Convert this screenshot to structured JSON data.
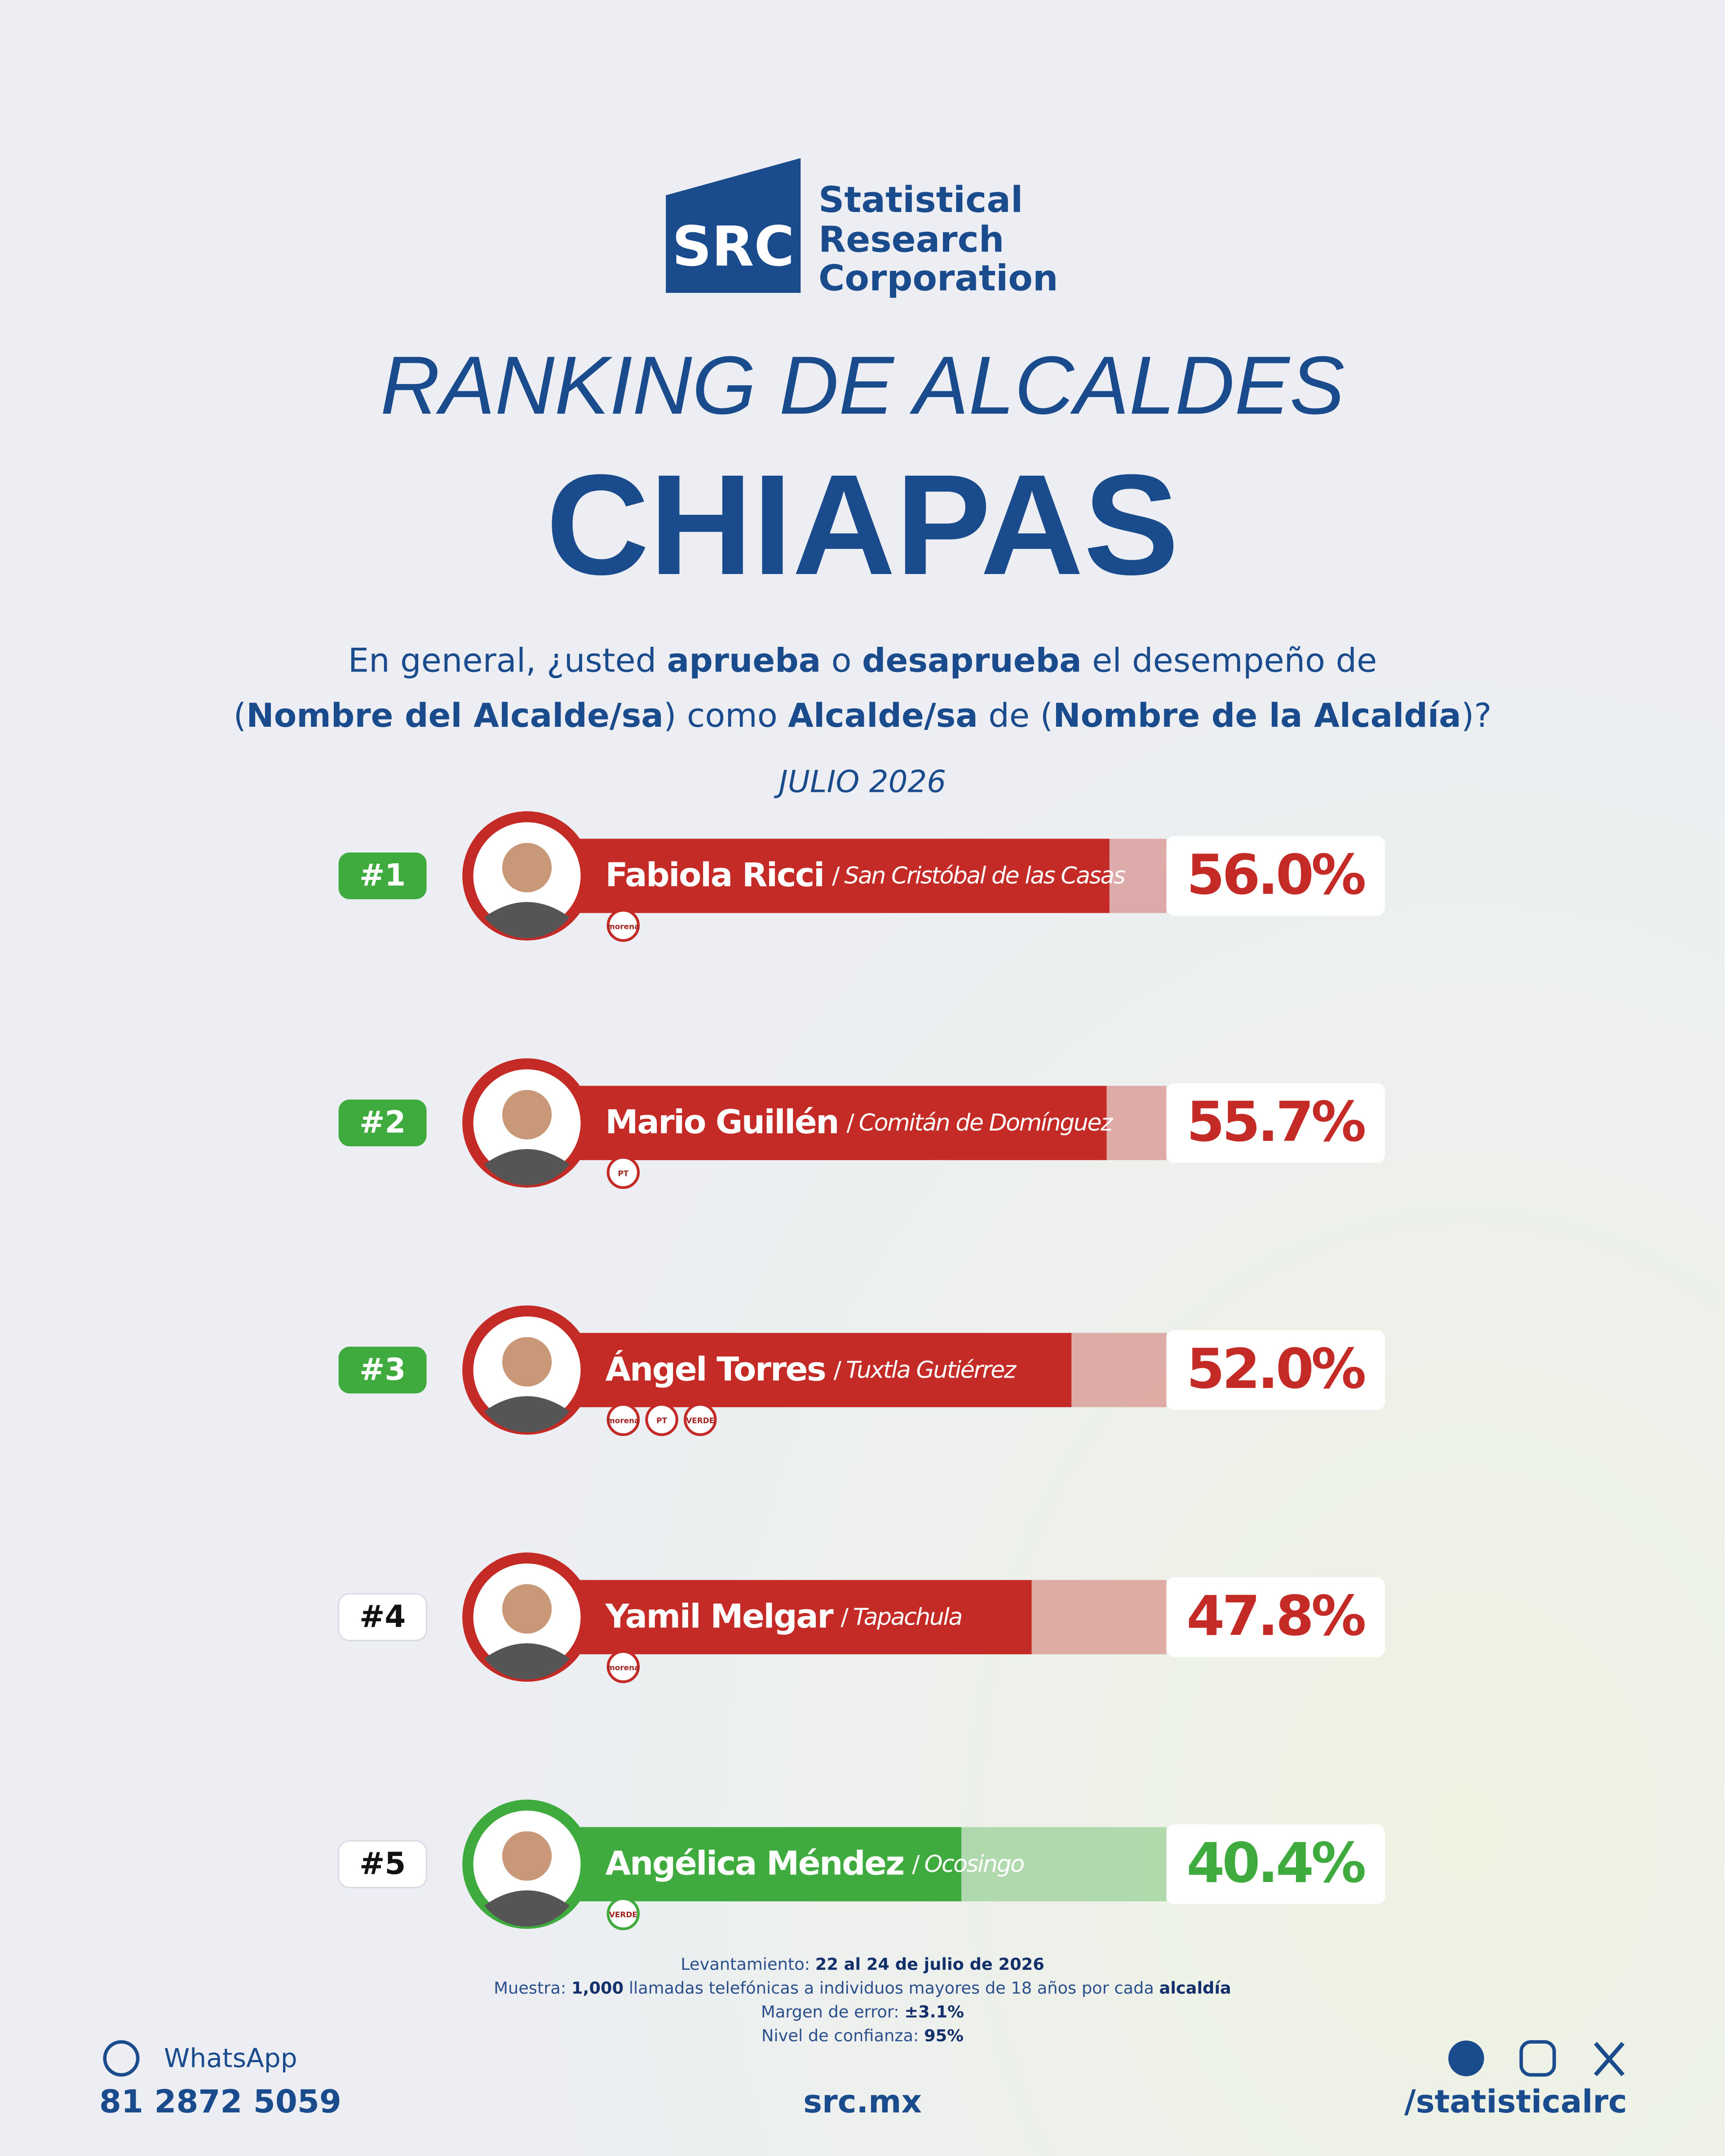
{
  "logo": {
    "mark": "SRC",
    "lines": [
      "Statistical",
      "Research",
      "Corporation"
    ]
  },
  "title": "RANKING DE ALCALDES",
  "state": "CHIAPAS",
  "question": [
    [
      "En general, ¿usted ",
      "aprueba",
      " o ",
      "desaprueba",
      " el desempeño de"
    ],
    [
      "(",
      "Nombre del Alcalde/sa",
      ") como ",
      "Alcalde/sa",
      " de (",
      "Nombre de la Alcaldía",
      ")?"
    ]
  ],
  "date": "JULIO 2026",
  "chart_data": {
    "type": "bar",
    "ranks": [
      "#1",
      "#2",
      "#3",
      "#4",
      "#5"
    ],
    "rank_colors": [
      "#3fab3f",
      "#3fab3f",
      "#3fab3f",
      "#ffffff",
      "#ffffff"
    ],
    "categories": [
      "Fabiola Ricci",
      "Mario Guillén",
      "Ángel Torres",
      "Yamil Melgar",
      "Angélica Méndez"
    ],
    "locations": [
      "San Cristóbal de las Casas",
      "Comitán de Domínguez",
      "Tuxtla Gutiérrez",
      "Tapachula",
      "Ocosingo"
    ],
    "parties": [
      [
        "morena"
      ],
      [
        "PT"
      ],
      [
        "morena",
        "PT",
        "VERDE"
      ],
      [
        "morena"
      ],
      [
        "VERDE"
      ]
    ],
    "values": [
      56.0,
      55.7,
      52.0,
      47.8,
      40.4
    ],
    "value_labels": [
      "56.0%",
      "55.7%",
      "52.0%",
      "47.8%",
      "40.4%"
    ],
    "colors": [
      "#c42a26",
      "#c42a26",
      "#c42a26",
      "#c42a26",
      "#3fab3f"
    ],
    "xlim": [
      0,
      62
    ]
  },
  "footnotes": [
    [
      "Levantamiento: ",
      "22 al 24 de julio de 2026"
    ],
    [
      "Muestra: ",
      "1,000",
      " llamadas telefónicas a individuos mayores de 18 años por cada ",
      "alcaldía"
    ],
    [
      "Margen de error: ",
      "±3.1%"
    ],
    [
      "Nivel de confianza: ",
      "95%"
    ]
  ],
  "contact": {
    "whatsapp": "WhatsApp",
    "phone": "81 2872 5059",
    "site": "src.mx",
    "handle": "/statisticalrc"
  }
}
